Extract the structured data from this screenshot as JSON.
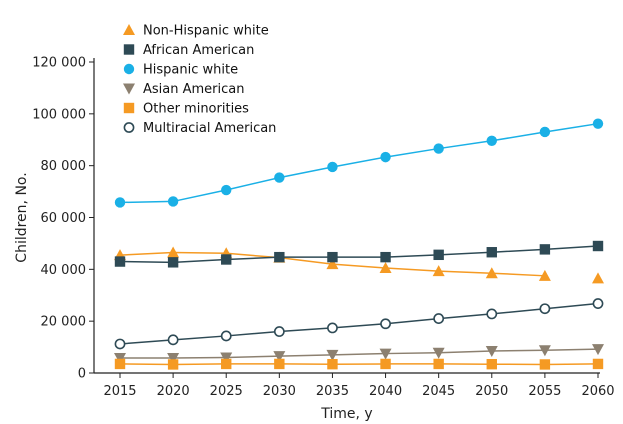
{
  "chart_data": {
    "type": "line",
    "xlabel": "Time, y",
    "ylabel": "Children, No.",
    "ylim": [
      0,
      120000
    ],
    "yticks": [
      0,
      20000,
      40000,
      60000,
      80000,
      100000,
      120000
    ],
    "ytick_labels": [
      "0",
      "20 000",
      "40 000",
      "60 000",
      "80 000",
      "100 000",
      "120 000"
    ],
    "x": [
      2015,
      2020,
      2025,
      2030,
      2035,
      2040,
      2045,
      2050,
      2055,
      2060
    ],
    "xtick_labels": [
      "2015",
      "2020",
      "2025",
      "2030",
      "2035",
      "2040",
      "2045",
      "2050",
      "2055",
      "2060"
    ],
    "legend_position": "top-left",
    "grid": false,
    "series": [
      {
        "name": "Non-Hispanic white",
        "color": "#f59a23",
        "marker": "triangle-up",
        "line": true,
        "line_until_index": 8,
        "values": [
          45500,
          46500,
          46200,
          44500,
          42000,
          40500,
          39300,
          38500,
          37500,
          36500
        ]
      },
      {
        "name": "African American",
        "color": "#2e4a55",
        "marker": "square",
        "line": true,
        "values": [
          43000,
          42700,
          43800,
          44700,
          44700,
          44700,
          45600,
          46600,
          47700,
          49000
        ]
      },
      {
        "name": "Hispanic white",
        "color": "#1ab0e6",
        "marker": "circle",
        "line": true,
        "values": [
          65800,
          66200,
          70600,
          75400,
          79500,
          83300,
          86600,
          89600,
          93000,
          96200
        ]
      },
      {
        "name": "Asian American",
        "color": "#8c8070",
        "marker": "triangle-down",
        "line": true,
        "values": [
          5800,
          5800,
          6000,
          6500,
          7000,
          7500,
          7800,
          8500,
          8800,
          9200
        ]
      },
      {
        "name": "Other minorities",
        "color": "#f59a23",
        "marker": "square",
        "line": true,
        "values": [
          3500,
          3300,
          3500,
          3500,
          3400,
          3500,
          3500,
          3400,
          3300,
          3500
        ]
      },
      {
        "name": "Multiracial American",
        "color": "#2e4a55",
        "marker": "circle-open",
        "line": true,
        "values": [
          11200,
          12800,
          14300,
          16000,
          17400,
          19000,
          21000,
          22800,
          24800,
          26800
        ]
      }
    ]
  }
}
